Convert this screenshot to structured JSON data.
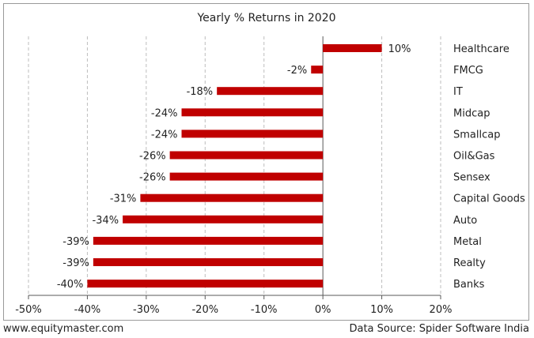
{
  "footer": {
    "website": "www.equitymaster.com",
    "source": "Data Source: Spider Software India"
  },
  "colors": {
    "bar": "#c00000",
    "grid": "#bdbdbd",
    "axis": "#595959",
    "frame": "#9a9a9a"
  },
  "chart_data": {
    "type": "bar",
    "orientation": "horizontal",
    "title": "Yearly % Returns in 2020",
    "xlabel": "",
    "ylabel": "",
    "categories": [
      "Healthcare",
      "FMCG",
      "IT",
      "Midcap",
      "Smallcap",
      "Oil&Gas",
      "Sensex",
      "Capital Goods",
      "Auto",
      "Metal",
      "Realty",
      "Banks"
    ],
    "values": [
      10,
      -2,
      -18,
      -24,
      -24,
      -26,
      -26,
      -31,
      -34,
      -39,
      -39,
      -40
    ],
    "data_labels": [
      "10%",
      "-2%",
      "-18%",
      "-24%",
      "-24%",
      "-26%",
      "-26%",
      "-31%",
      "-34%",
      "-39%",
      "-39%",
      "-40%"
    ],
    "xlim": [
      -50,
      20
    ],
    "xticks": [
      -50,
      -40,
      -30,
      -20,
      -10,
      0,
      10,
      20
    ],
    "xtick_labels": [
      "-50%",
      "-40%",
      "-30%",
      "-20%",
      "-10%",
      "0%",
      "10%",
      "20%"
    ],
    "grid": "vertical dashed",
    "category_labels_position": "right"
  }
}
